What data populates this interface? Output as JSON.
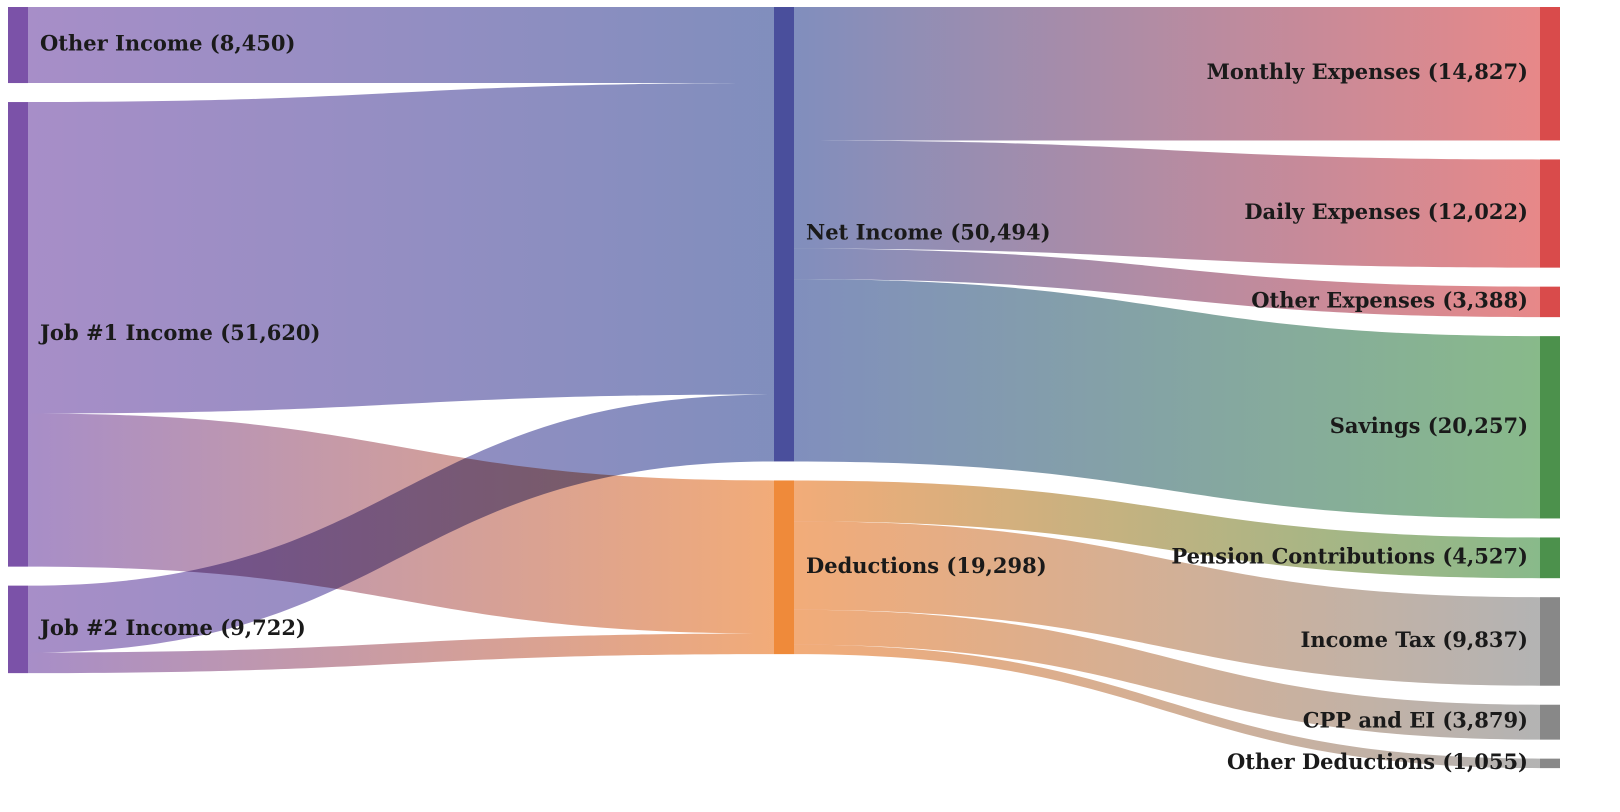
{
  "chart_data": {
    "type": "sankey",
    "title": "",
    "nodes": [
      {
        "id": "other_income",
        "label": "Other Income (8,450)",
        "value": 8450,
        "column": 0,
        "color": "#7b52a8"
      },
      {
        "id": "job1",
        "label": "Job #1 Income (51,620)",
        "value": 51620,
        "column": 0,
        "color": "#7b52a8"
      },
      {
        "id": "job2",
        "label": "Job #2 Income (9,722)",
        "value": 9722,
        "column": 0,
        "color": "#7b52a8"
      },
      {
        "id": "net",
        "label": "Net Income (50,494)",
        "value": 50494,
        "column": 1,
        "color": "#4a4f9c"
      },
      {
        "id": "deductions",
        "label": "Deductions (19,298)",
        "value": 19298,
        "column": 1,
        "color": "#ef8a3a"
      },
      {
        "id": "monthly",
        "label": "Monthly Expenses (14,827)",
        "value": 14827,
        "column": 2,
        "color": "#d94b4b"
      },
      {
        "id": "daily",
        "label": "Daily Expenses (12,022)",
        "value": 12022,
        "column": 2,
        "color": "#d94b4b"
      },
      {
        "id": "other_exp",
        "label": "Other Expenses (3,388)",
        "value": 3388,
        "column": 2,
        "color": "#d94b4b"
      },
      {
        "id": "savings",
        "label": "Savings (20,257)",
        "value": 20257,
        "column": 2,
        "color": "#4c914c"
      },
      {
        "id": "pension",
        "label": "Pension Contributions (4,527)",
        "value": 4527,
        "column": 2,
        "color": "#4c914c"
      },
      {
        "id": "income_tax",
        "label": "Income Tax (9,837)",
        "value": 9837,
        "column": 2,
        "color": "#888888"
      },
      {
        "id": "cpp_ei",
        "label": "CPP and EI (3,879)",
        "value": 3879,
        "column": 2,
        "color": "#888888"
      },
      {
        "id": "other_ded",
        "label": "Other Deductions (1,055)",
        "value": 1055,
        "column": 2,
        "color": "#888888"
      }
    ],
    "links": [
      {
        "source": "other_income",
        "target": "net",
        "value": 8450
      },
      {
        "source": "job1",
        "target": "net",
        "value": 34608
      },
      {
        "source": "job1",
        "target": "deductions",
        "value": 17012
      },
      {
        "source": "job2",
        "target": "net",
        "value": 7436
      },
      {
        "source": "job2",
        "target": "deductions",
        "value": 2286
      },
      {
        "source": "net",
        "target": "monthly",
        "value": 14827
      },
      {
        "source": "net",
        "target": "daily",
        "value": 12022
      },
      {
        "source": "net",
        "target": "other_exp",
        "value": 3388
      },
      {
        "source": "net",
        "target": "savings",
        "value": 20257
      },
      {
        "source": "deductions",
        "target": "pension",
        "value": 4527
      },
      {
        "source": "deductions",
        "target": "income_tax",
        "value": 9837
      },
      {
        "source": "deductions",
        "target": "cpp_ei",
        "value": 3879
      },
      {
        "source": "deductions",
        "target": "other_ded",
        "value": 1055
      }
    ],
    "link_colors": {
      "income": "#9b7ec0",
      "net": "#6f7fb4",
      "deductions": "#f0a066",
      "expenses": "#e47878",
      "savings": "#78b07a",
      "tax": "#a9a9a9"
    }
  }
}
